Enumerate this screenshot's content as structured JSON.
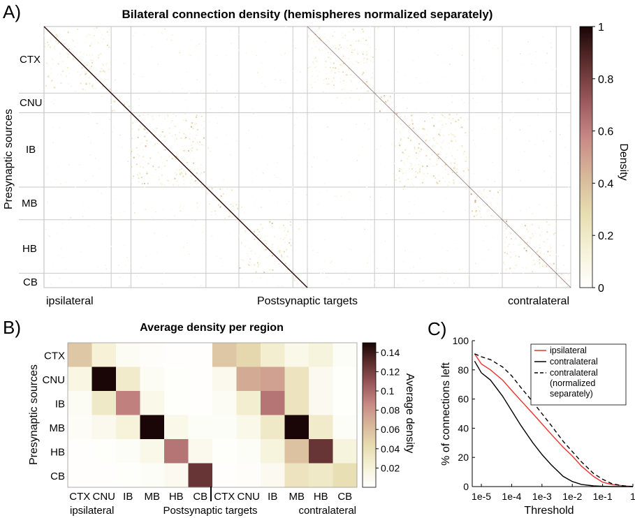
{
  "panel_a": {
    "panel_label": "A)",
    "title": "Bilateral connection density (hemispheres normalized separately)",
    "ylabel": "Presynaptic sources",
    "xlabel": "Postsynaptic targets",
    "left_label": "ipsilateral",
    "right_label": "contralateral",
    "row_regions": [
      "CTX",
      "CNU",
      "IB",
      "MB",
      "HB",
      "CB"
    ],
    "colorbar": {
      "label": "Density",
      "ticks": [
        "0",
        "0.2",
        "0.4",
        "0.6",
        "0.8",
        "1"
      ]
    }
  },
  "panel_b": {
    "panel_label": "B)",
    "title": "Average density per region",
    "ylabel": "Presynaptic sources",
    "xlabel": "Postsynaptic targets",
    "ipsilateral_label": "ipsilateral",
    "contralateral_label": "contralateral",
    "rows": [
      "CTX",
      "CNU",
      "IB",
      "MB",
      "HB",
      "CB"
    ],
    "cols": [
      "CTX",
      "CNU",
      "IB",
      "MB",
      "HB",
      "CB",
      "CTX",
      "CNU",
      "IB",
      "MB",
      "HB",
      "CB"
    ],
    "colorbar": {
      "label": "Average density",
      "ticks": [
        "0.02",
        "0.04",
        "0.06",
        "0.08",
        "0.1",
        "0.12",
        "0.14"
      ]
    }
  },
  "panel_c": {
    "panel_label": "C)",
    "ylabel": "% of connections left",
    "xlabel": "Threshold",
    "x_ticks": [
      "1e-5",
      "1e-4",
      "1e-3",
      "1e-2",
      "1e-1",
      "1"
    ],
    "y_ticks": [
      "0",
      "20",
      "40",
      "60",
      "80",
      "100"
    ],
    "legend": [
      {
        "label": "ipsilateral",
        "style": "solid",
        "color": "#e8332e"
      },
      {
        "label": "contralateral",
        "style": "solid",
        "color": "#000000"
      },
      {
        "label": "contralateral (normalized separately)",
        "label_lines": [
          "contralateral",
          "(normalized",
          "separately)"
        ],
        "style": "dashed",
        "color": "#000000"
      }
    ]
  },
  "colors": {
    "cmap": [
      "#ffffff",
      "#f6f2d8",
      "#e7dcb0",
      "#d7b79a",
      "#c98a86",
      "#9c5a5e",
      "#5e2e2e",
      "#1a0606"
    ],
    "grid": "#c8c8c8",
    "red": "#e8332e"
  },
  "chart_data": [
    {
      "type": "heatmap",
      "title": "Bilateral connection density (hemispheres normalized separately)",
      "xlabel": "Postsynaptic targets",
      "ylabel": "Presynaptic sources",
      "row_categories": [
        "CTX",
        "CNU",
        "IB",
        "MB",
        "HB",
        "CB"
      ],
      "column_groups": [
        "ipsilateral",
        "contralateral"
      ],
      "value_range": [
        0,
        1
      ],
      "colorbar_label": "Density"
    },
    {
      "type": "heatmap",
      "title": "Average density per region",
      "xlabel": "Postsynaptic targets",
      "ylabel": "Presynaptic sources",
      "rows": [
        "CTX",
        "CNU",
        "IB",
        "MB",
        "HB",
        "CB"
      ],
      "columns": [
        "CTX",
        "CNU",
        "IB",
        "MB",
        "HB",
        "CB",
        "CTX",
        "CNU",
        "IB",
        "MB",
        "HB",
        "CB"
      ],
      "column_groups": [
        {
          "name": "ipsilateral",
          "columns": [
            0,
            1,
            2,
            3,
            4,
            5
          ]
        },
        {
          "name": "contralateral",
          "columns": [
            6,
            7,
            8,
            9,
            10,
            11
          ]
        }
      ],
      "values": [
        [
          0.055,
          0.022,
          0.006,
          0.003,
          0.001,
          0.001,
          0.055,
          0.045,
          0.025,
          0.012,
          0.018,
          0.004
        ],
        [
          0.015,
          0.15,
          0.028,
          0.006,
          0.002,
          0.001,
          0.01,
          0.07,
          0.075,
          0.035,
          0.008,
          0.002
        ],
        [
          0.006,
          0.03,
          0.09,
          0.012,
          0.002,
          0.001,
          0.006,
          0.025,
          0.095,
          0.035,
          0.008,
          0.002
        ],
        [
          0.005,
          0.01,
          0.02,
          0.15,
          0.012,
          0.004,
          0.004,
          0.012,
          0.03,
          0.15,
          0.028,
          0.004
        ],
        [
          0.001,
          0.002,
          0.004,
          0.012,
          0.095,
          0.01,
          0.002,
          0.004,
          0.018,
          0.058,
          0.125,
          0.018
        ],
        [
          0.001,
          0.001,
          0.002,
          0.004,
          0.008,
          0.125,
          0.001,
          0.003,
          0.008,
          0.035,
          0.03,
          0.04
        ]
      ],
      "value_range": [
        0,
        0.15
      ],
      "colorbar_label": "Average density"
    },
    {
      "type": "line",
      "xlabel": "Threshold",
      "ylabel": "% of connections left",
      "x_scale": "log",
      "xlim": [
        5e-06,
        1
      ],
      "ylim": [
        0,
        100
      ],
      "x": [
        6e-06,
        1e-05,
        2e-05,
        5e-05,
        0.0001,
        0.0002,
        0.0005,
        0.001,
        0.002,
        0.005,
        0.01,
        0.02,
        0.05,
        0.1,
        0.2,
        0.5,
        1
      ],
      "series": [
        {
          "name": "ipsilateral",
          "values": [
            91,
            84,
            80,
            73,
            66,
            59,
            50,
            43,
            36,
            27,
            21,
            14,
            7,
            3,
            1.5,
            0.5,
            0
          ]
        },
        {
          "name": "contralateral",
          "values": [
            86,
            78,
            73,
            62,
            52,
            42,
            30,
            22,
            15,
            7,
            3.5,
            1.5,
            0.5,
            0.2,
            0,
            0,
            0
          ]
        },
        {
          "name": "contralateral (normalized separately)",
          "values": [
            91,
            89,
            87,
            82,
            76,
            68,
            58,
            50,
            42,
            31,
            24,
            17,
            9,
            5,
            2,
            0.5,
            0
          ]
        }
      ],
      "legend_position": "top-right"
    }
  ]
}
